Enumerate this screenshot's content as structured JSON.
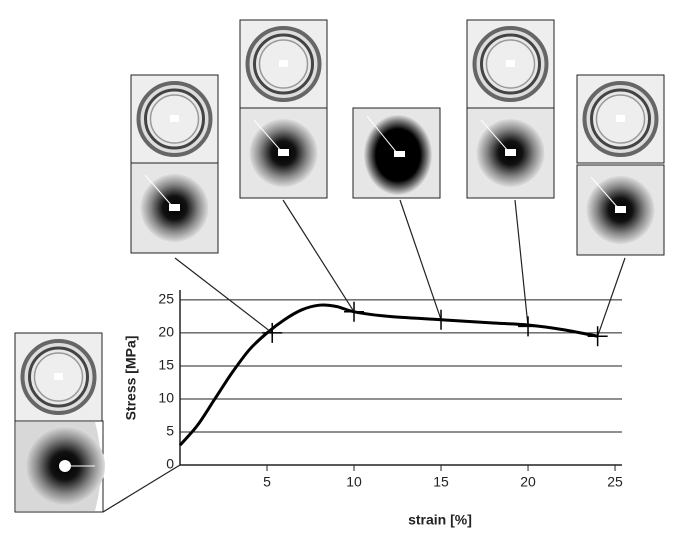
{
  "chart_data": {
    "type": "line",
    "x_label": "strain [%]",
    "y_label": "Stress [MPa]",
    "x": [
      0,
      1,
      2,
      3,
      4,
      5,
      6,
      7,
      8,
      9,
      10,
      12,
      15,
      18,
      20,
      22,
      24
    ],
    "values": [
      3,
      6,
      10,
      14,
      17.5,
      20,
      22,
      23.5,
      24.2,
      24,
      23.2,
      22.5,
      22,
      21.5,
      21.2,
      20.5,
      19.5
    ],
    "color": "#000000",
    "markers": {
      "x": [
        5.3,
        10,
        15,
        20,
        24
      ],
      "values": [
        20,
        23.2,
        22,
        21,
        19.5
      ]
    },
    "xlim": [
      0,
      25.4
    ],
    "ylim": [
      0,
      26.5
    ],
    "xticks": [
      5,
      10,
      15,
      20,
      25
    ],
    "yticks": [
      0,
      5,
      10,
      15,
      20,
      25
    ],
    "grid": true
  }
}
